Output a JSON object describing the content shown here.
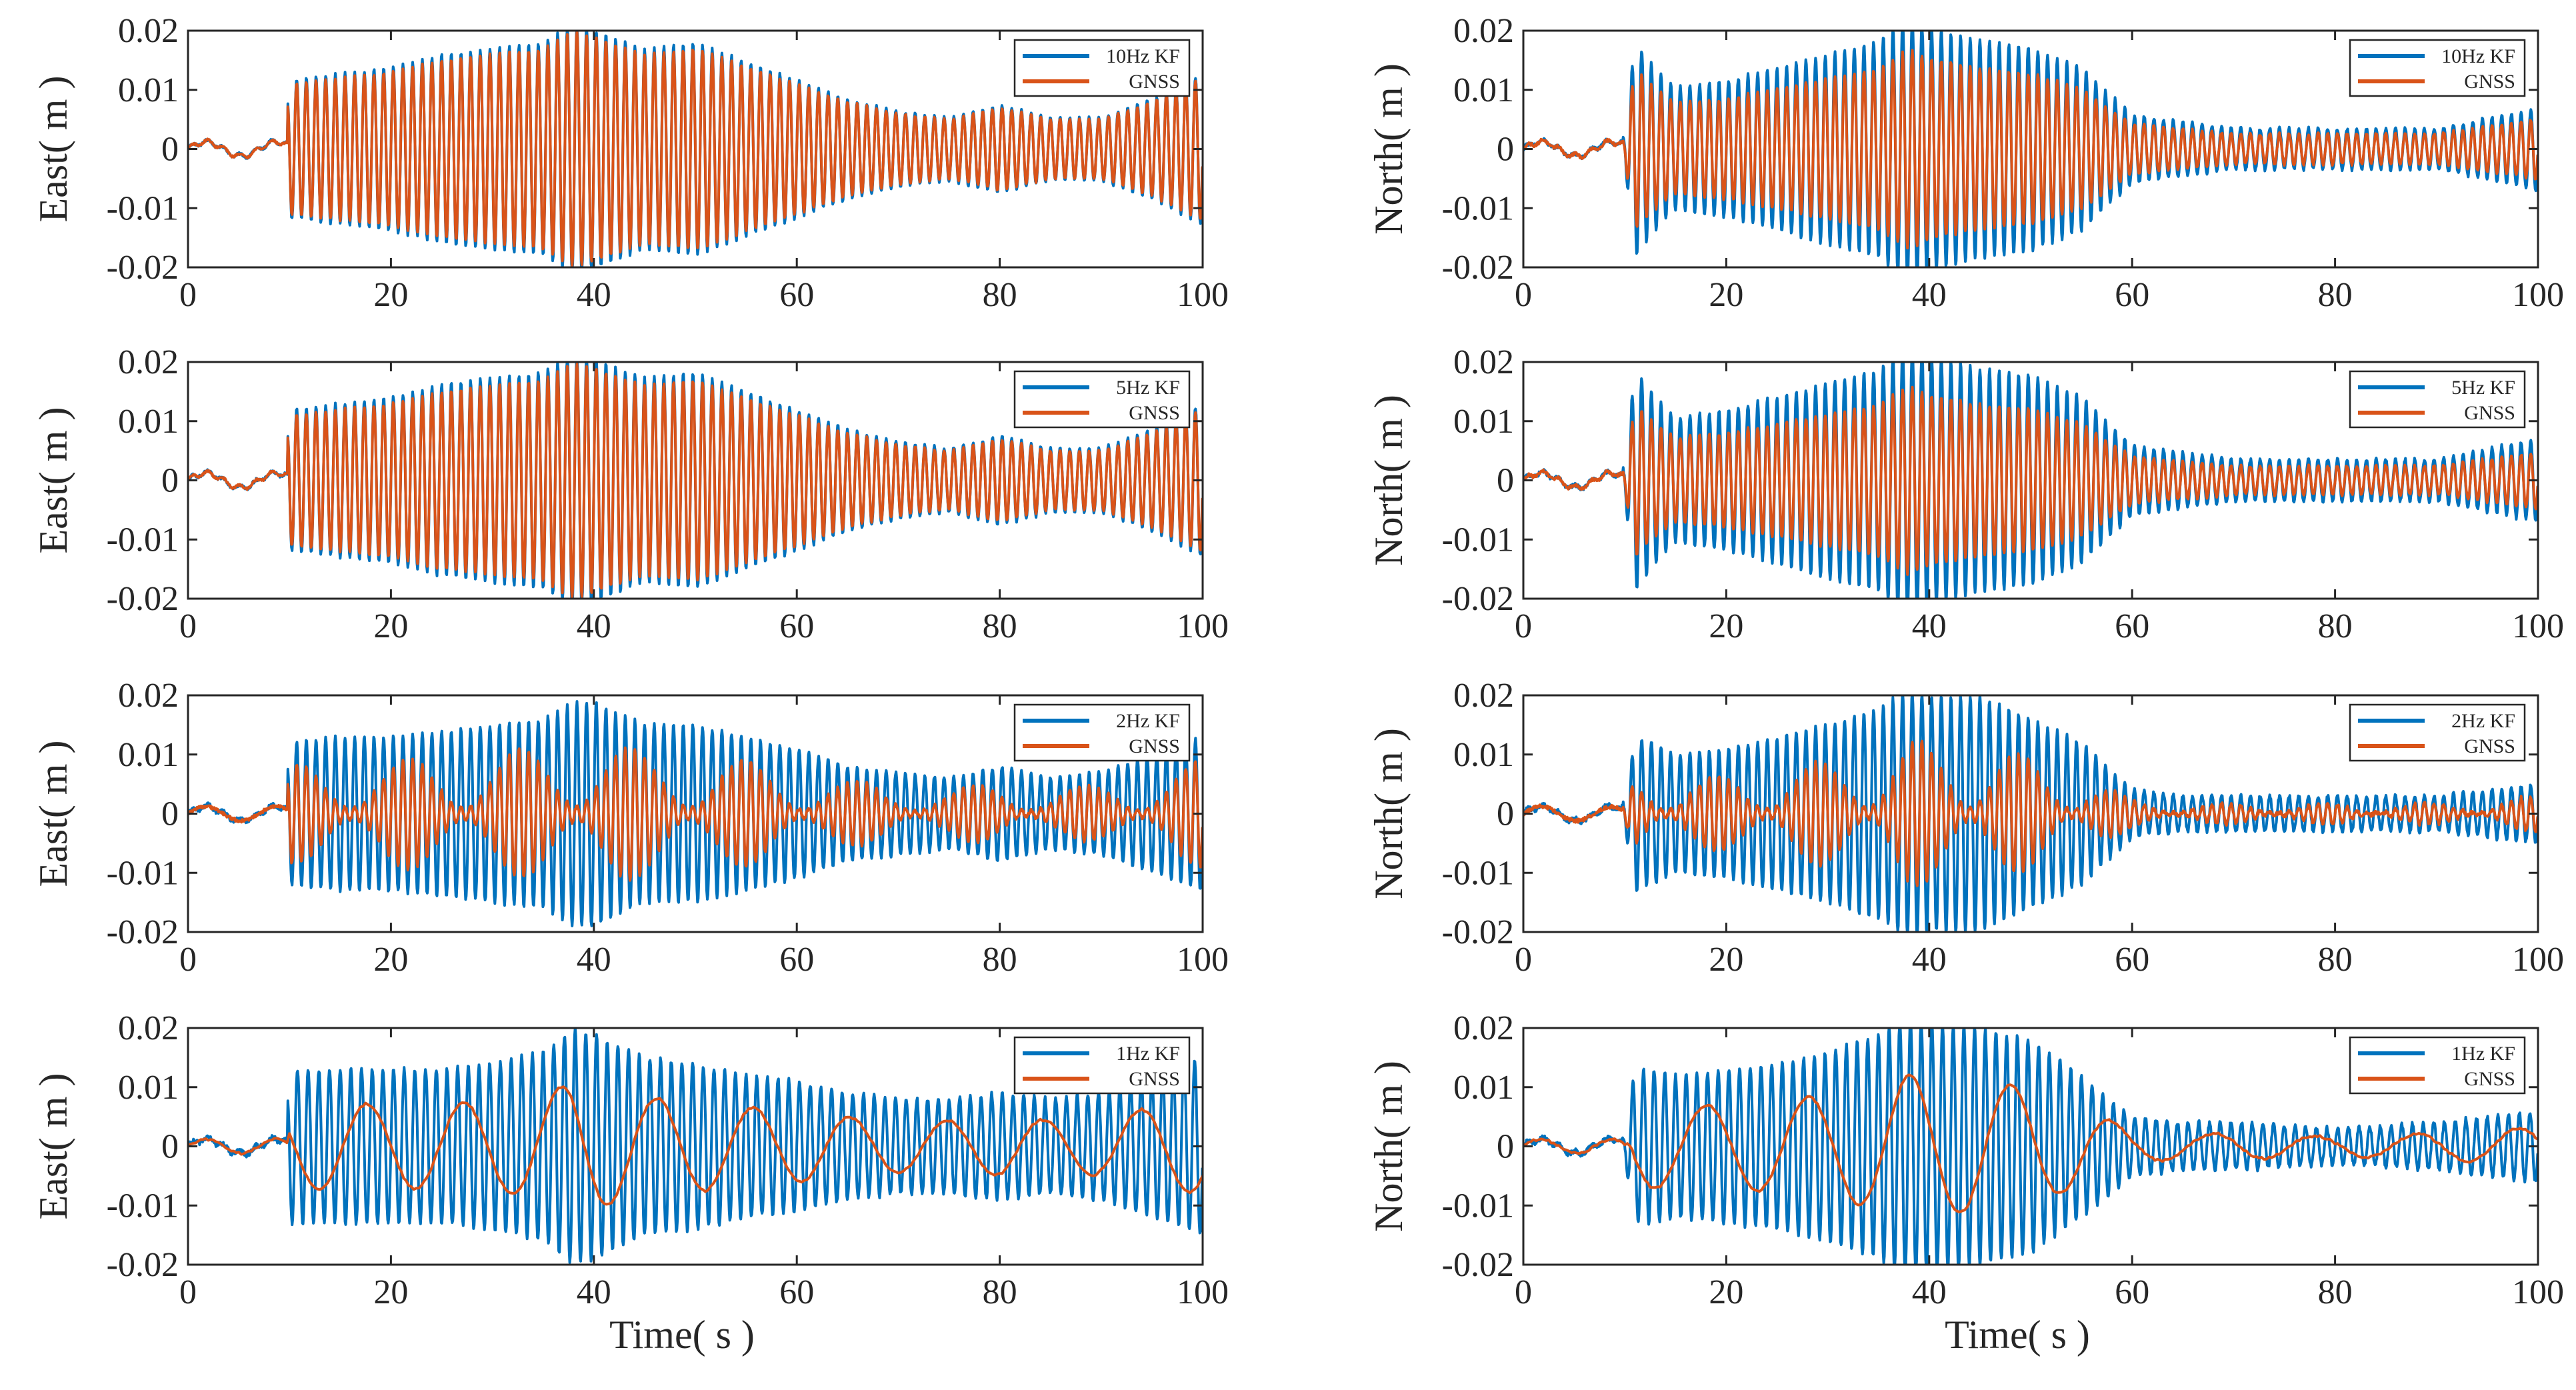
{
  "figure": {
    "description_note": "",
    "colors": {
      "kf": "#0072BD",
      "gnss": "#D95319",
      "axis": "#262626"
    }
  },
  "chart_data": [
    {
      "id": "east-10hz",
      "type": "line",
      "xlabel": "",
      "ylabel": "East( m )",
      "xlim": [
        0,
        100
      ],
      "ylim": [
        -0.02,
        0.02
      ],
      "xticks": [
        0,
        20,
        40,
        60,
        80,
        100
      ],
      "yticks": [
        -0.02,
        -0.01,
        0,
        0.01,
        0.02
      ],
      "xticklabels": [
        "0",
        "20",
        "40",
        "60",
        "80",
        "100"
      ],
      "yticklabels": [
        "-0.02",
        "-0.01",
        "0",
        "0.01",
        "0.02"
      ],
      "legend": [
        "10Hz KF",
        "GNSS"
      ],
      "legend_position": "top-right",
      "envelope": {
        "x": [
          0,
          9.5,
          10,
          15,
          20,
          25,
          30,
          35,
          38,
          40,
          45,
          50,
          55,
          60,
          65,
          70,
          75,
          80,
          85,
          90,
          95,
          100
        ],
        "amp": [
          0.002,
          0.002,
          0.011,
          0.012,
          0.013,
          0.015,
          0.016,
          0.017,
          0.02,
          0.019,
          0.016,
          0.017,
          0.014,
          0.011,
          0.008,
          0.006,
          0.005,
          0.007,
          0.005,
          0.005,
          0.008,
          0.012
        ]
      },
      "series": [
        {
          "name": "10Hz KF",
          "kind": "kf",
          "freq": 1.05,
          "gain": 1.06,
          "noise": 0.0004
        },
        {
          "name": "GNSS",
          "kind": "gnss",
          "freq": 1.05,
          "gain": 1.0,
          "noise": 0.0003
        }
      ]
    },
    {
      "id": "north-10hz",
      "type": "line",
      "xlabel": "",
      "ylabel": "North( m )",
      "xlim": [
        0,
        100
      ],
      "ylim": [
        -0.02,
        0.02
      ],
      "xticks": [
        0,
        20,
        40,
        60,
        80,
        100
      ],
      "yticks": [
        -0.02,
        -0.01,
        0,
        0.01,
        0.02
      ],
      "xticklabels": [
        "0",
        "20",
        "40",
        "60",
        "80",
        "100"
      ],
      "yticklabels": [
        "-0.02",
        "-0.01",
        "0",
        "0.01",
        "0.02"
      ],
      "legend": [
        "10Hz KF",
        "GNSS"
      ],
      "legend_position": "top-right",
      "envelope": {
        "x": [
          0,
          10,
          11,
          13,
          15,
          20,
          25,
          30,
          35,
          38,
          40,
          45,
          50,
          55,
          60,
          65,
          70,
          80,
          90,
          100
        ],
        "amp": [
          0.002,
          0.002,
          0.016,
          0.012,
          0.009,
          0.01,
          0.012,
          0.014,
          0.016,
          0.02,
          0.018,
          0.016,
          0.015,
          0.012,
          0.005,
          0.004,
          0.003,
          0.003,
          0.003,
          0.006
        ]
      },
      "series": [
        {
          "name": "10Hz KF",
          "kind": "kf",
          "freq": 1.05,
          "gain": 1.15,
          "noise": 0.0006
        },
        {
          "name": "GNSS",
          "kind": "gnss",
          "freq": 1.05,
          "gain": 0.85,
          "noise": 0.0005
        }
      ]
    },
    {
      "id": "east-5hz",
      "type": "line",
      "xlabel": "",
      "ylabel": "East( m )",
      "xlim": [
        0,
        100
      ],
      "ylim": [
        -0.02,
        0.02
      ],
      "xticks": [
        0,
        20,
        40,
        60,
        80,
        100
      ],
      "yticks": [
        -0.02,
        -0.01,
        0,
        0.01,
        0.02
      ],
      "xticklabels": [
        "0",
        "20",
        "40",
        "60",
        "80",
        "100"
      ],
      "yticklabels": [
        "-0.02",
        "-0.01",
        "0",
        "0.01",
        "0.02"
      ],
      "legend": [
        "5Hz KF",
        "GNSS"
      ],
      "legend_position": "top-right",
      "envelope": {
        "x": [
          0,
          9.5,
          10,
          15,
          20,
          25,
          30,
          35,
          38,
          40,
          45,
          50,
          55,
          60,
          65,
          70,
          75,
          80,
          85,
          90,
          95,
          100
        ],
        "amp": [
          0.002,
          0.002,
          0.011,
          0.012,
          0.013,
          0.015,
          0.016,
          0.017,
          0.02,
          0.019,
          0.016,
          0.017,
          0.014,
          0.011,
          0.008,
          0.006,
          0.005,
          0.007,
          0.005,
          0.005,
          0.008,
          0.012
        ]
      },
      "series": [
        {
          "name": "5Hz KF",
          "kind": "kf",
          "freq": 1.05,
          "gain": 1.08,
          "noise": 0.0005
        },
        {
          "name": "GNSS",
          "kind": "gnss",
          "freq": 1.05,
          "gain": 1.0,
          "noise": 0.0003
        }
      ]
    },
    {
      "id": "north-5hz",
      "type": "line",
      "xlabel": "",
      "ylabel": "North( m )",
      "xlim": [
        0,
        100
      ],
      "ylim": [
        -0.02,
        0.02
      ],
      "xticks": [
        0,
        20,
        40,
        60,
        80,
        100
      ],
      "yticks": [
        -0.02,
        -0.01,
        0,
        0.01,
        0.02
      ],
      "xticklabels": [
        "0",
        "20",
        "40",
        "60",
        "80",
        "100"
      ],
      "yticklabels": [
        "-0.02",
        "-0.01",
        "0",
        "0.01",
        "0.02"
      ],
      "legend": [
        "5Hz KF",
        "GNSS"
      ],
      "legend_position": "top-right",
      "envelope": {
        "x": [
          0,
          10,
          11,
          13,
          15,
          20,
          25,
          30,
          35,
          38,
          40,
          45,
          50,
          55,
          60,
          65,
          70,
          80,
          90,
          100
        ],
        "amp": [
          0.002,
          0.002,
          0.016,
          0.012,
          0.009,
          0.01,
          0.012,
          0.014,
          0.016,
          0.02,
          0.018,
          0.016,
          0.015,
          0.012,
          0.005,
          0.004,
          0.003,
          0.003,
          0.003,
          0.006
        ]
      },
      "series": [
        {
          "name": "5Hz KF",
          "kind": "kf",
          "freq": 1.05,
          "gain": 1.18,
          "noise": 0.0006
        },
        {
          "name": "GNSS",
          "kind": "gnss",
          "freq": 1.05,
          "gain": 0.8,
          "noise": 0.0005
        }
      ]
    },
    {
      "id": "east-2hz",
      "type": "line",
      "xlabel": "",
      "ylabel": "East( m )",
      "xlim": [
        0,
        100
      ],
      "ylim": [
        -0.02,
        0.02
      ],
      "xticks": [
        0,
        20,
        40,
        60,
        80,
        100
      ],
      "yticks": [
        -0.02,
        -0.01,
        0,
        0.01,
        0.02
      ],
      "xticklabels": [
        "0",
        "20",
        "40",
        "60",
        "80",
        "100"
      ],
      "yticklabels": [
        "-0.02",
        "-0.01",
        "0",
        "0.01",
        "0.02"
      ],
      "legend": [
        "2Hz KF",
        "GNSS"
      ],
      "legend_position": "top-right",
      "envelope": {
        "x": [
          0,
          9.5,
          10,
          15,
          20,
          25,
          30,
          35,
          38,
          40,
          45,
          50,
          55,
          60,
          65,
          70,
          75,
          80,
          85,
          90,
          95,
          100
        ],
        "amp": [
          0.002,
          0.002,
          0.012,
          0.013,
          0.013,
          0.014,
          0.015,
          0.016,
          0.019,
          0.019,
          0.015,
          0.015,
          0.013,
          0.011,
          0.008,
          0.007,
          0.006,
          0.008,
          0.006,
          0.007,
          0.01,
          0.013
        ]
      },
      "series": [
        {
          "name": "2Hz KF",
          "kind": "kf",
          "freq": 1.05,
          "gain": 1.0,
          "noise": 0.0006
        },
        {
          "name": "GNSS",
          "kind": "gnss-beat",
          "freq": 1.05,
          "gain": 0.7,
          "beat": 0.09,
          "noise": 0.0005
        }
      ]
    },
    {
      "id": "north-2hz",
      "type": "line",
      "xlabel": "",
      "ylabel": "North( m )",
      "xlim": [
        0,
        100
      ],
      "ylim": [
        -0.02,
        0.02
      ],
      "xticks": [
        0,
        20,
        40,
        60,
        80,
        100
      ],
      "yticks": [
        -0.02,
        -0.01,
        0,
        0.01,
        0.02
      ],
      "xticklabels": [
        "0",
        "20",
        "40",
        "60",
        "80",
        "100"
      ],
      "yticklabels": [
        "-0.02",
        "-0.01",
        "0",
        "0.01",
        "0.02"
      ],
      "legend": [
        "2Hz KF",
        "GNSS"
      ],
      "legend_position": "top-right",
      "envelope": {
        "x": [
          0,
          10,
          11,
          13,
          15,
          20,
          25,
          30,
          35,
          38,
          40,
          45,
          50,
          55,
          60,
          65,
          70,
          80,
          90,
          100
        ],
        "amp": [
          0.002,
          0.002,
          0.013,
          0.012,
          0.01,
          0.011,
          0.013,
          0.015,
          0.018,
          0.021,
          0.02,
          0.02,
          0.016,
          0.012,
          0.004,
          0.003,
          0.003,
          0.003,
          0.003,
          0.005
        ]
      },
      "series": [
        {
          "name": "2Hz KF",
          "kind": "kf",
          "freq": 1.05,
          "gain": 1.0,
          "noise": 0.0007
        },
        {
          "name": "GNSS",
          "kind": "gnss-beat",
          "freq": 1.05,
          "gain": 0.6,
          "beat": 0.1,
          "noise": 0.0006
        }
      ]
    },
    {
      "id": "east-1hz",
      "type": "line",
      "xlabel": "Time( s )",
      "ylabel": "East( m )",
      "xlim": [
        0,
        100
      ],
      "ylim": [
        -0.02,
        0.02
      ],
      "xticks": [
        0,
        20,
        40,
        60,
        80,
        100
      ],
      "yticks": [
        -0.02,
        -0.01,
        0,
        0.01,
        0.02
      ],
      "xticklabels": [
        "0",
        "20",
        "40",
        "60",
        "80",
        "100"
      ],
      "yticklabels": [
        "-0.02",
        "-0.01",
        "0",
        "0.01",
        "0.02"
      ],
      "legend": [
        "1Hz KF",
        "GNSS"
      ],
      "legend_position": "top-right",
      "envelope": {
        "x": [
          0,
          9.5,
          10,
          15,
          20,
          25,
          30,
          35,
          38,
          40,
          45,
          50,
          55,
          60,
          65,
          70,
          75,
          80,
          85,
          90,
          95,
          100
        ],
        "amp": [
          0.002,
          0.002,
          0.013,
          0.013,
          0.013,
          0.013,
          0.014,
          0.016,
          0.02,
          0.019,
          0.015,
          0.014,
          0.012,
          0.011,
          0.009,
          0.008,
          0.008,
          0.009,
          0.008,
          0.009,
          0.012,
          0.015
        ]
      },
      "series": [
        {
          "name": "1Hz KF",
          "kind": "kf",
          "freq": 0.95,
          "gain": 1.0,
          "noise": 0.0008
        },
        {
          "name": "GNSS",
          "kind": "gnss-slow",
          "freq": 0.105,
          "gain": 0.55,
          "noise": 0.0004
        }
      ]
    },
    {
      "id": "north-1hz",
      "type": "line",
      "xlabel": "Time( s )",
      "ylabel": "North( m )",
      "xlim": [
        0,
        100
      ],
      "ylim": [
        -0.02,
        0.02
      ],
      "xticks": [
        0,
        20,
        40,
        60,
        80,
        100
      ],
      "yticks": [
        -0.02,
        -0.01,
        0,
        0.01,
        0.02
      ],
      "xticklabels": [
        "0",
        "20",
        "40",
        "60",
        "80",
        "100"
      ],
      "yticklabels": [
        "-0.02",
        "-0.01",
        "0",
        "0.01",
        "0.02"
      ],
      "legend": [
        "1Hz KF",
        "GNSS"
      ],
      "legend_position": "top-right",
      "envelope": {
        "x": [
          0,
          10,
          11,
          13,
          15,
          20,
          25,
          30,
          35,
          38,
          40,
          45,
          50,
          55,
          60,
          65,
          70,
          80,
          90,
          100
        ],
        "amp": [
          0.002,
          0.002,
          0.013,
          0.013,
          0.012,
          0.013,
          0.014,
          0.016,
          0.019,
          0.022,
          0.021,
          0.02,
          0.018,
          0.012,
          0.005,
          0.004,
          0.004,
          0.003,
          0.004,
          0.006
        ]
      },
      "series": [
        {
          "name": "1Hz KF",
          "kind": "kf",
          "freq": 0.95,
          "gain": 1.0,
          "noise": 0.0008
        },
        {
          "name": "GNSS",
          "kind": "gnss-slow",
          "freq": 0.1,
          "gain": 0.55,
          "noise": 0.0004
        }
      ]
    }
  ]
}
